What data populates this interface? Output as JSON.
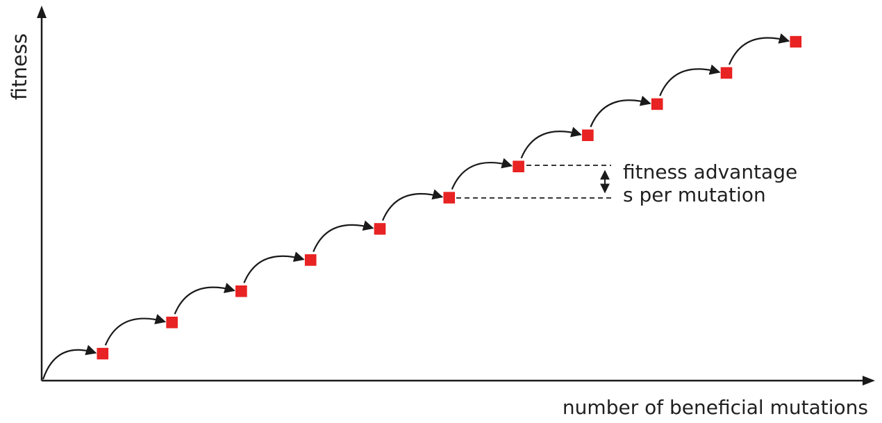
{
  "diagram": {
    "y_axis_label": "fitness",
    "x_axis_label": "number of beneficial mutations",
    "annotation_line1": "fitness advantage",
    "annotation_line2": "s per mutation",
    "marker_color": "#e82323",
    "line_color": "#1a1a1a",
    "mutation_steps": 11
  }
}
